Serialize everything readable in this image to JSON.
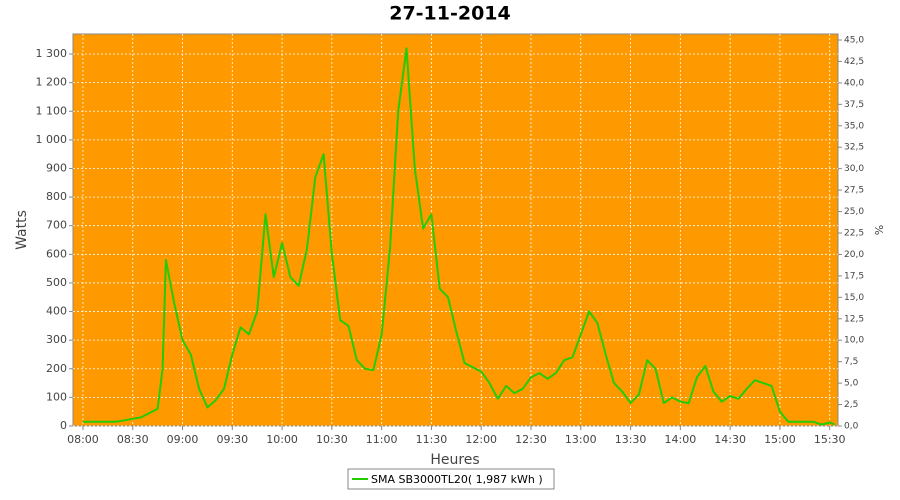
{
  "chart_data": {
    "type": "line",
    "title": "27-11-2014",
    "x_label": "Heures",
    "y_label": "Watts",
    "y2_label": "%",
    "x": [
      "08:00",
      "08:05",
      "08:10",
      "08:15",
      "08:20",
      "08:25",
      "08:30",
      "08:35",
      "08:40",
      "08:45",
      "08:48",
      "08:50",
      "08:52",
      "08:55",
      "09:00",
      "09:05",
      "09:10",
      "09:15",
      "09:20",
      "09:25",
      "09:30",
      "09:35",
      "09:40",
      "09:45",
      "09:50",
      "09:55",
      "10:00",
      "10:05",
      "10:10",
      "10:15",
      "10:20",
      "10:25",
      "10:30",
      "10:35",
      "10:40",
      "10:45",
      "10:50",
      "10:55",
      "11:00",
      "11:05",
      "11:10",
      "11:15",
      "11:20",
      "11:25",
      "11:30",
      "11:35",
      "11:40",
      "11:45",
      "11:50",
      "11:55",
      "12:00",
      "12:05",
      "12:10",
      "12:15",
      "12:20",
      "12:25",
      "12:30",
      "12:35",
      "12:40",
      "12:45",
      "12:50",
      "12:55",
      "13:00",
      "13:05",
      "13:10",
      "13:15",
      "13:20",
      "13:25",
      "13:30",
      "13:35",
      "13:40",
      "13:45",
      "13:50",
      "13:55",
      "14:00",
      "14:05",
      "14:10",
      "14:15",
      "14:20",
      "14:25",
      "14:30",
      "14:35",
      "14:40",
      "14:45",
      "14:50",
      "14:55",
      "15:00",
      "15:05",
      "15:10",
      "15:15",
      "15:20",
      "15:25",
      "15:30",
      "15:33"
    ],
    "series": [
      {
        "name": "SMA SB3000TL20( 1,987 kWh )",
        "color": "#22cc00",
        "values": [
          15,
          15,
          15,
          15,
          15,
          20,
          25,
          30,
          45,
          60,
          200,
          580,
          520,
          430,
          300,
          250,
          130,
          65,
          90,
          130,
          250,
          345,
          320,
          400,
          740,
          520,
          640,
          520,
          490,
          620,
          870,
          950,
          600,
          370,
          350,
          230,
          200,
          195,
          320,
          620,
          1100,
          1320,
          900,
          690,
          740,
          480,
          450,
          330,
          220,
          205,
          190,
          150,
          95,
          140,
          115,
          130,
          170,
          185,
          165,
          185,
          230,
          240,
          320,
          400,
          360,
          250,
          150,
          120,
          80,
          110,
          230,
          200,
          80,
          100,
          85,
          80,
          170,
          210,
          120,
          85,
          105,
          95,
          130,
          160,
          150,
          140,
          50,
          15,
          15,
          15,
          15,
          5,
          12,
          5
        ]
      }
    ],
    "xlim": [
      "07:54",
      "15:35"
    ],
    "xticks": [
      "08:00",
      "08:30",
      "09:00",
      "09:30",
      "10:00",
      "10:30",
      "11:00",
      "11:30",
      "12:00",
      "12:30",
      "13:00",
      "13:30",
      "14:00",
      "14:30",
      "15:00",
      "15:30"
    ],
    "ylim": [
      0,
      1370
    ],
    "yticks": [
      0,
      100,
      200,
      300,
      400,
      500,
      600,
      700,
      800,
      900,
      {
        "value": 1000,
        "label": "1 000"
      },
      {
        "value": 1100,
        "label": "1 100"
      },
      {
        "value": 1200,
        "label": "1 200"
      },
      {
        "value": 1300,
        "label": "1 300"
      }
    ],
    "y2lim": [
      0,
      45.7
    ],
    "y2ticks": [
      {
        "value": 0,
        "label": "0,0"
      },
      {
        "value": 2.5,
        "label": "2,5"
      },
      {
        "value": 5,
        "label": "5,0"
      },
      {
        "value": 7.5,
        "label": "7,5"
      },
      {
        "value": 10,
        "label": "10,0"
      },
      {
        "value": 12.5,
        "label": "12,5"
      },
      {
        "value": 15,
        "label": "15,0"
      },
      {
        "value": 17.5,
        "label": "17,5"
      },
      {
        "value": 20,
        "label": "20,0"
      },
      {
        "value": 22.5,
        "label": "22,5"
      },
      {
        "value": 25,
        "label": "25,0"
      },
      {
        "value": 27.5,
        "label": "27,5"
      },
      {
        "value": 30,
        "label": "30,0"
      },
      {
        "value": 32.5,
        "label": "32,5"
      },
      {
        "value": 35,
        "label": "35,0"
      },
      {
        "value": 37.5,
        "label": "37,5"
      },
      {
        "value": 40,
        "label": "40,0"
      },
      {
        "value": 42.5,
        "label": "42,5"
      },
      {
        "value": 45,
        "label": "45,0"
      }
    ],
    "grid": true,
    "background": "#ff9900",
    "legend": "bottom"
  }
}
